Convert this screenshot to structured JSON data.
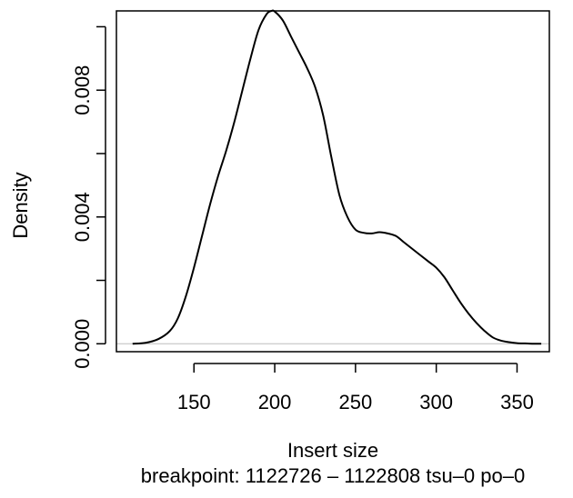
{
  "chart_data": {
    "type": "line",
    "title": "",
    "xlabel": "Insert size",
    "subtitle": "breakpoint: 1122726 – 1122808 tsu–0 po–0",
    "ylabel": "Density",
    "xlim": [
      102,
      370
    ],
    "ylim": [
      -0.00025,
      0.0105
    ],
    "x_ticks": [
      150,
      200,
      250,
      300,
      350
    ],
    "x_tick_labels": [
      "150",
      "200",
      "250",
      "300",
      "350"
    ],
    "y_ticks": [
      0.0,
      0.002,
      0.004,
      0.006,
      0.008,
      0.01
    ],
    "y_tick_labels": [
      "0.000",
      "",
      "0.004",
      "",
      "0.008",
      ""
    ],
    "grid": false,
    "baseline": 0,
    "series": [
      {
        "x": [
          112,
          120,
          128,
          135,
          140,
          145,
          150,
          155,
          160,
          165,
          170,
          175,
          180,
          185,
          190,
          195,
          198,
          200,
          205,
          210,
          215,
          220,
          225,
          230,
          235,
          240,
          245,
          250,
          255,
          260,
          265,
          270,
          275,
          280,
          285,
          290,
          295,
          300,
          305,
          310,
          315,
          320,
          325,
          330,
          335,
          340,
          345,
          350,
          355,
          360,
          365
        ],
        "y": [
          0.0,
          3e-05,
          0.00015,
          0.0004,
          0.0008,
          0.0015,
          0.0024,
          0.0034,
          0.0044,
          0.0053,
          0.0061,
          0.007,
          0.008,
          0.009,
          0.0099,
          0.0104,
          0.0105,
          0.01048,
          0.0102,
          0.0097,
          0.0092,
          0.0087,
          0.0081,
          0.0072,
          0.0059,
          0.0047,
          0.004,
          0.0036,
          0.0035,
          0.00348,
          0.00352,
          0.00348,
          0.0034,
          0.0032,
          0.003,
          0.0028,
          0.0026,
          0.0024,
          0.0021,
          0.0017,
          0.0013,
          0.00095,
          0.00065,
          0.0004,
          0.0002,
          0.0001,
          5e-05,
          2e-05,
          1e-05,
          0.0,
          0.0
        ]
      }
    ]
  }
}
